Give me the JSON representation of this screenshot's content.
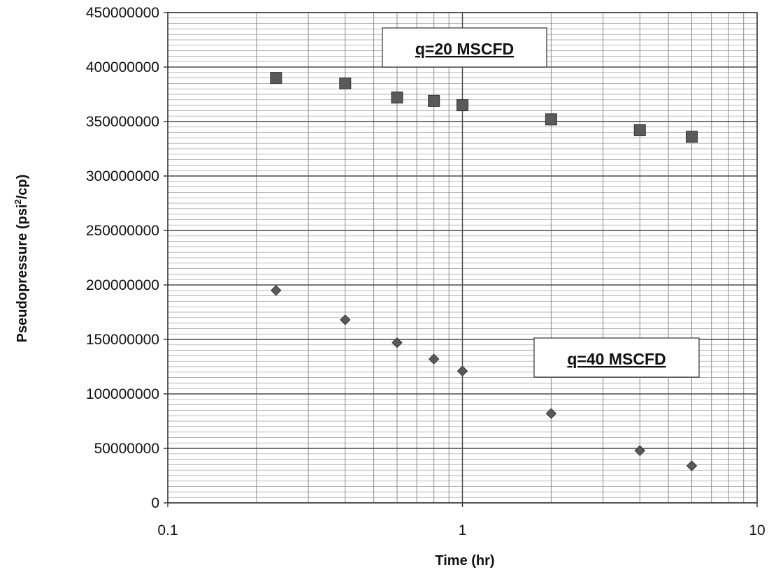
{
  "chart_data": {
    "type": "scatter",
    "x_scale": "log",
    "xlim": [
      0.1,
      10
    ],
    "ylim": [
      0,
      450000000
    ],
    "xlabel": "Time (hr)",
    "ylabel_main": "Pseudopressure (psi",
    "ylabel_sup": "2",
    "ylabel_tail": "/cp)",
    "x_ticks": [
      "0.1",
      "1",
      "10"
    ],
    "x_tick_values": [
      0.1,
      1,
      10
    ],
    "y_ticks": [
      "0",
      "50000000",
      "100000000",
      "150000000",
      "200000000",
      "250000000",
      "300000000",
      "350000000",
      "400000000",
      "450000000"
    ],
    "y_tick_values": [
      0,
      50000000,
      100000000,
      150000000,
      200000000,
      250000000,
      300000000,
      350000000,
      400000000,
      450000000
    ],
    "grid": true,
    "annotations": [
      {
        "text": "q=20 MSCFD",
        "series": "q20"
      },
      {
        "text": "q=40 MSCFD",
        "series": "q40"
      }
    ],
    "series": [
      {
        "id": "q20",
        "marker": "square",
        "color": "#5a5a5a",
        "x": [
          0.233,
          0.4,
          0.6,
          0.8,
          1.0,
          2.0,
          4.0,
          6.0
        ],
        "y": [
          390000000,
          385000000,
          372000000,
          369000000,
          365000000,
          352000000,
          342000000,
          336000000
        ]
      },
      {
        "id": "q40",
        "marker": "diamond",
        "color": "#5a5a5a",
        "x": [
          0.233,
          0.4,
          0.6,
          0.8,
          1.0,
          2.0,
          4.0,
          6.0
        ],
        "y": [
          195000000,
          168000000,
          147000000,
          132000000,
          121000000,
          82000000,
          48000000,
          34000000
        ]
      }
    ]
  }
}
